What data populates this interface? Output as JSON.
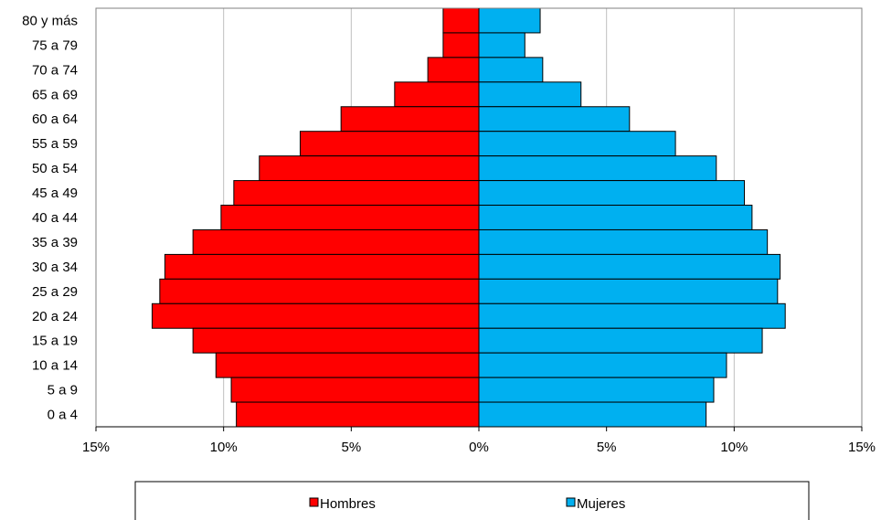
{
  "chart_data": {
    "type": "bar",
    "orientation": "horizontal",
    "style": "population-pyramid",
    "categories": [
      "80 y más",
      "75 a 79",
      "70 a 74",
      "65 a 69",
      "60 a 64",
      "55 a 59",
      "50 a 54",
      "45 a 49",
      "40 a 44",
      "35 a 39",
      "30 a 34",
      "25 a 29",
      "20 a 24",
      "15 a 19",
      "10 a 14",
      "5 a 9",
      "0 a 4"
    ],
    "series": [
      {
        "name": "Hombres",
        "color": "#ff0000",
        "values": [
          1.4,
          1.4,
          2.0,
          3.3,
          5.4,
          7.0,
          8.6,
          9.6,
          10.1,
          11.2,
          12.3,
          12.5,
          12.8,
          11.2,
          10.3,
          9.7,
          9.5
        ]
      },
      {
        "name": "Mujeres",
        "color": "#00b0f0",
        "values": [
          2.4,
          1.8,
          2.5,
          4.0,
          5.9,
          7.7,
          9.3,
          10.4,
          10.7,
          11.3,
          11.8,
          11.7,
          12.0,
          11.1,
          9.7,
          9.2,
          8.9
        ]
      }
    ],
    "x_ticks": [
      "15%",
      "10%",
      "5%",
      "0%",
      "5%",
      "10%",
      "15%"
    ],
    "xlim": [
      -15,
      15
    ],
    "grid": "vertical",
    "legend_position": "bottom"
  }
}
